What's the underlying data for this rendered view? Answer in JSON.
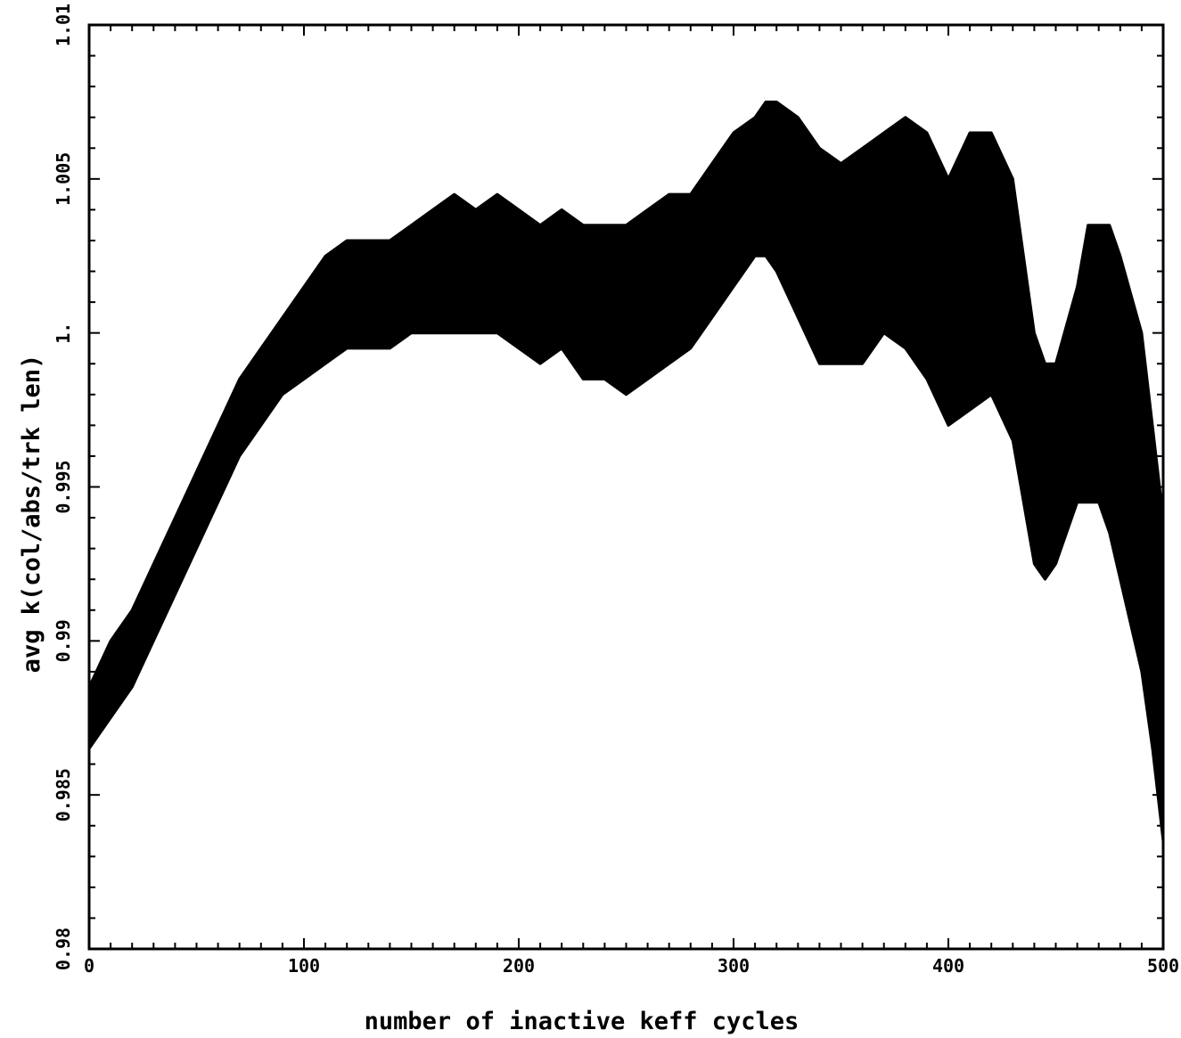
{
  "chart_data": {
    "type": "area",
    "title": "",
    "xlabel": "number of inactive keff cycles",
    "ylabel": "avg k(col/abs/trk len)",
    "xlim": [
      0,
      500
    ],
    "ylim": [
      0.98,
      1.01
    ],
    "xticks": [
      0,
      100,
      200,
      300,
      400,
      500
    ],
    "xtick_labels": [
      "0",
      "100",
      "200",
      "300",
      "400",
      "500"
    ],
    "yticks": [
      0.98,
      0.985,
      0.99,
      0.995,
      1.0,
      1.005,
      1.01
    ],
    "ytick_labels": [
      "0.98",
      "0.985",
      "0.99",
      "0.995",
      "1.",
      "1.005",
      "1.01"
    ],
    "grid": false,
    "legend": "none",
    "color": "#000000",
    "series": [
      {
        "x": [
          0,
          10,
          20,
          30,
          40,
          50,
          60,
          70,
          80,
          90,
          100,
          110,
          120,
          130,
          140,
          150,
          160,
          170,
          180,
          190,
          200,
          210,
          220,
          230,
          240,
          250,
          260,
          270,
          280,
          290,
          300,
          310,
          315,
          320,
          330,
          340,
          350,
          360,
          370,
          380,
          390,
          400,
          410,
          420,
          430,
          440,
          445,
          450,
          460,
          465,
          470,
          475,
          480,
          490,
          495,
          500
        ],
        "upper": [
          0.9885,
          0.99,
          0.991,
          0.9925,
          0.994,
          0.9955,
          0.997,
          0.9985,
          0.9995,
          1.0005,
          1.0015,
          1.0025,
          1.003,
          1.003,
          1.003,
          1.0035,
          1.004,
          1.0045,
          1.004,
          1.0045,
          1.004,
          1.0035,
          1.004,
          1.0035,
          1.0035,
          1.0035,
          1.004,
          1.0045,
          1.0045,
          1.0055,
          1.0065,
          1.007,
          1.0075,
          1.0075,
          1.007,
          1.006,
          1.0055,
          1.006,
          1.0065,
          1.007,
          1.0065,
          1.005,
          1.0065,
          1.0065,
          1.005,
          1.0,
          0.999,
          0.999,
          1.0015,
          1.0035,
          1.0035,
          1.0035,
          1.0025,
          1.0,
          0.997,
          0.994
        ],
        "lower": [
          0.9865,
          0.9875,
          0.9885,
          0.99,
          0.9915,
          0.993,
          0.9945,
          0.996,
          0.997,
          0.998,
          0.9985,
          0.999,
          0.9995,
          0.9995,
          0.9995,
          1.0,
          1.0,
          1.0,
          1.0,
          1.0,
          0.9995,
          0.999,
          0.9995,
          0.9985,
          0.9985,
          0.998,
          0.9985,
          0.999,
          0.9995,
          1.0005,
          1.0015,
          1.0025,
          1.0025,
          1.002,
          1.0005,
          0.999,
          0.999,
          0.999,
          1.0,
          0.9995,
          0.9985,
          0.997,
          0.9975,
          0.998,
          0.9965,
          0.9925,
          0.992,
          0.9925,
          0.9945,
          0.9945,
          0.9945,
          0.9935,
          0.992,
          0.989,
          0.9865,
          0.9835
        ]
      }
    ]
  }
}
